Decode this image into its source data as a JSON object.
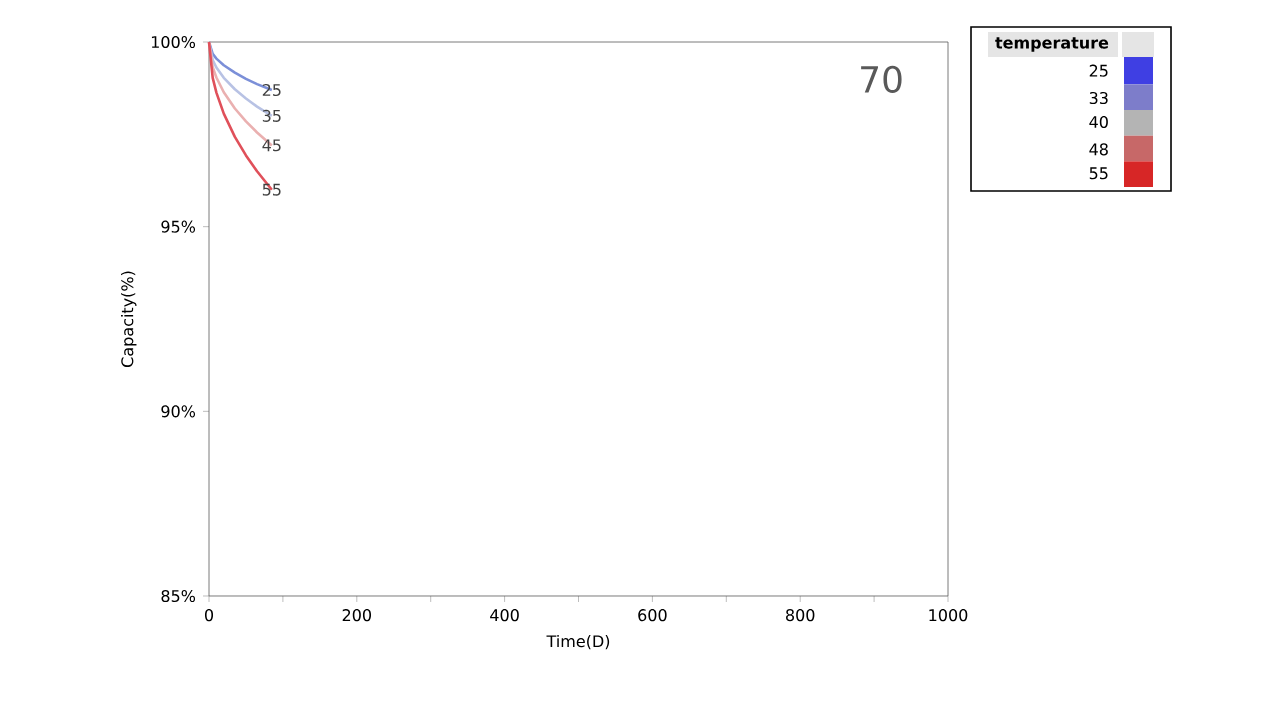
{
  "chart_data": {
    "type": "line",
    "xlabel": "Time(D)",
    "ylabel": "Capacity(%)",
    "clabel": "temperature",
    "annotations": [
      "70"
    ],
    "x": [
      0,
      5,
      10,
      20,
      35,
      50,
      65,
      85
    ],
    "series": [
      {
        "name": "25",
        "color": "#7b8fd8",
        "values": [
          100,
          99.68,
          99.55,
          99.37,
          99.17,
          99.0,
          98.86,
          98.7
        ]
      },
      {
        "name": "35",
        "color": "#b8c2e4",
        "values": [
          100,
          99.51,
          99.31,
          99.03,
          98.72,
          98.47,
          98.25,
          98.0
        ]
      },
      {
        "name": "45",
        "color": "#eab0b0",
        "values": [
          100,
          99.32,
          99.04,
          98.64,
          98.2,
          97.85,
          97.55,
          97.2
        ]
      },
      {
        "name": "55",
        "color": "#e0505a",
        "values": [
          100,
          99.03,
          98.63,
          98.06,
          97.43,
          96.93,
          96.5,
          96.0
        ]
      }
    ],
    "clim": [
      21,
      59
    ],
    "cticks": [
      25,
      33,
      40,
      48,
      55
    ],
    "xlim": [
      0,
      1000
    ],
    "xticks": [
      0,
      {
        "value": 100,
        "label": null
      },
      200,
      {
        "value": 300,
        "label": null
      },
      400,
      {
        "value": 500,
        "label": null
      },
      600,
      {
        "value": 700,
        "label": null
      },
      800,
      {
        "value": 900,
        "label": null
      },
      1000
    ],
    "ylim": [
      85,
      100
    ],
    "yticks": [
      {
        "value": 85,
        "label": "85%"
      },
      {
        "value": 90,
        "label": "90%"
      },
      {
        "value": 95,
        "label": "95%"
      },
      {
        "value": 100,
        "label": "100%"
      }
    ],
    "grid": false,
    "marker": "none",
    "line_style": "solid"
  }
}
